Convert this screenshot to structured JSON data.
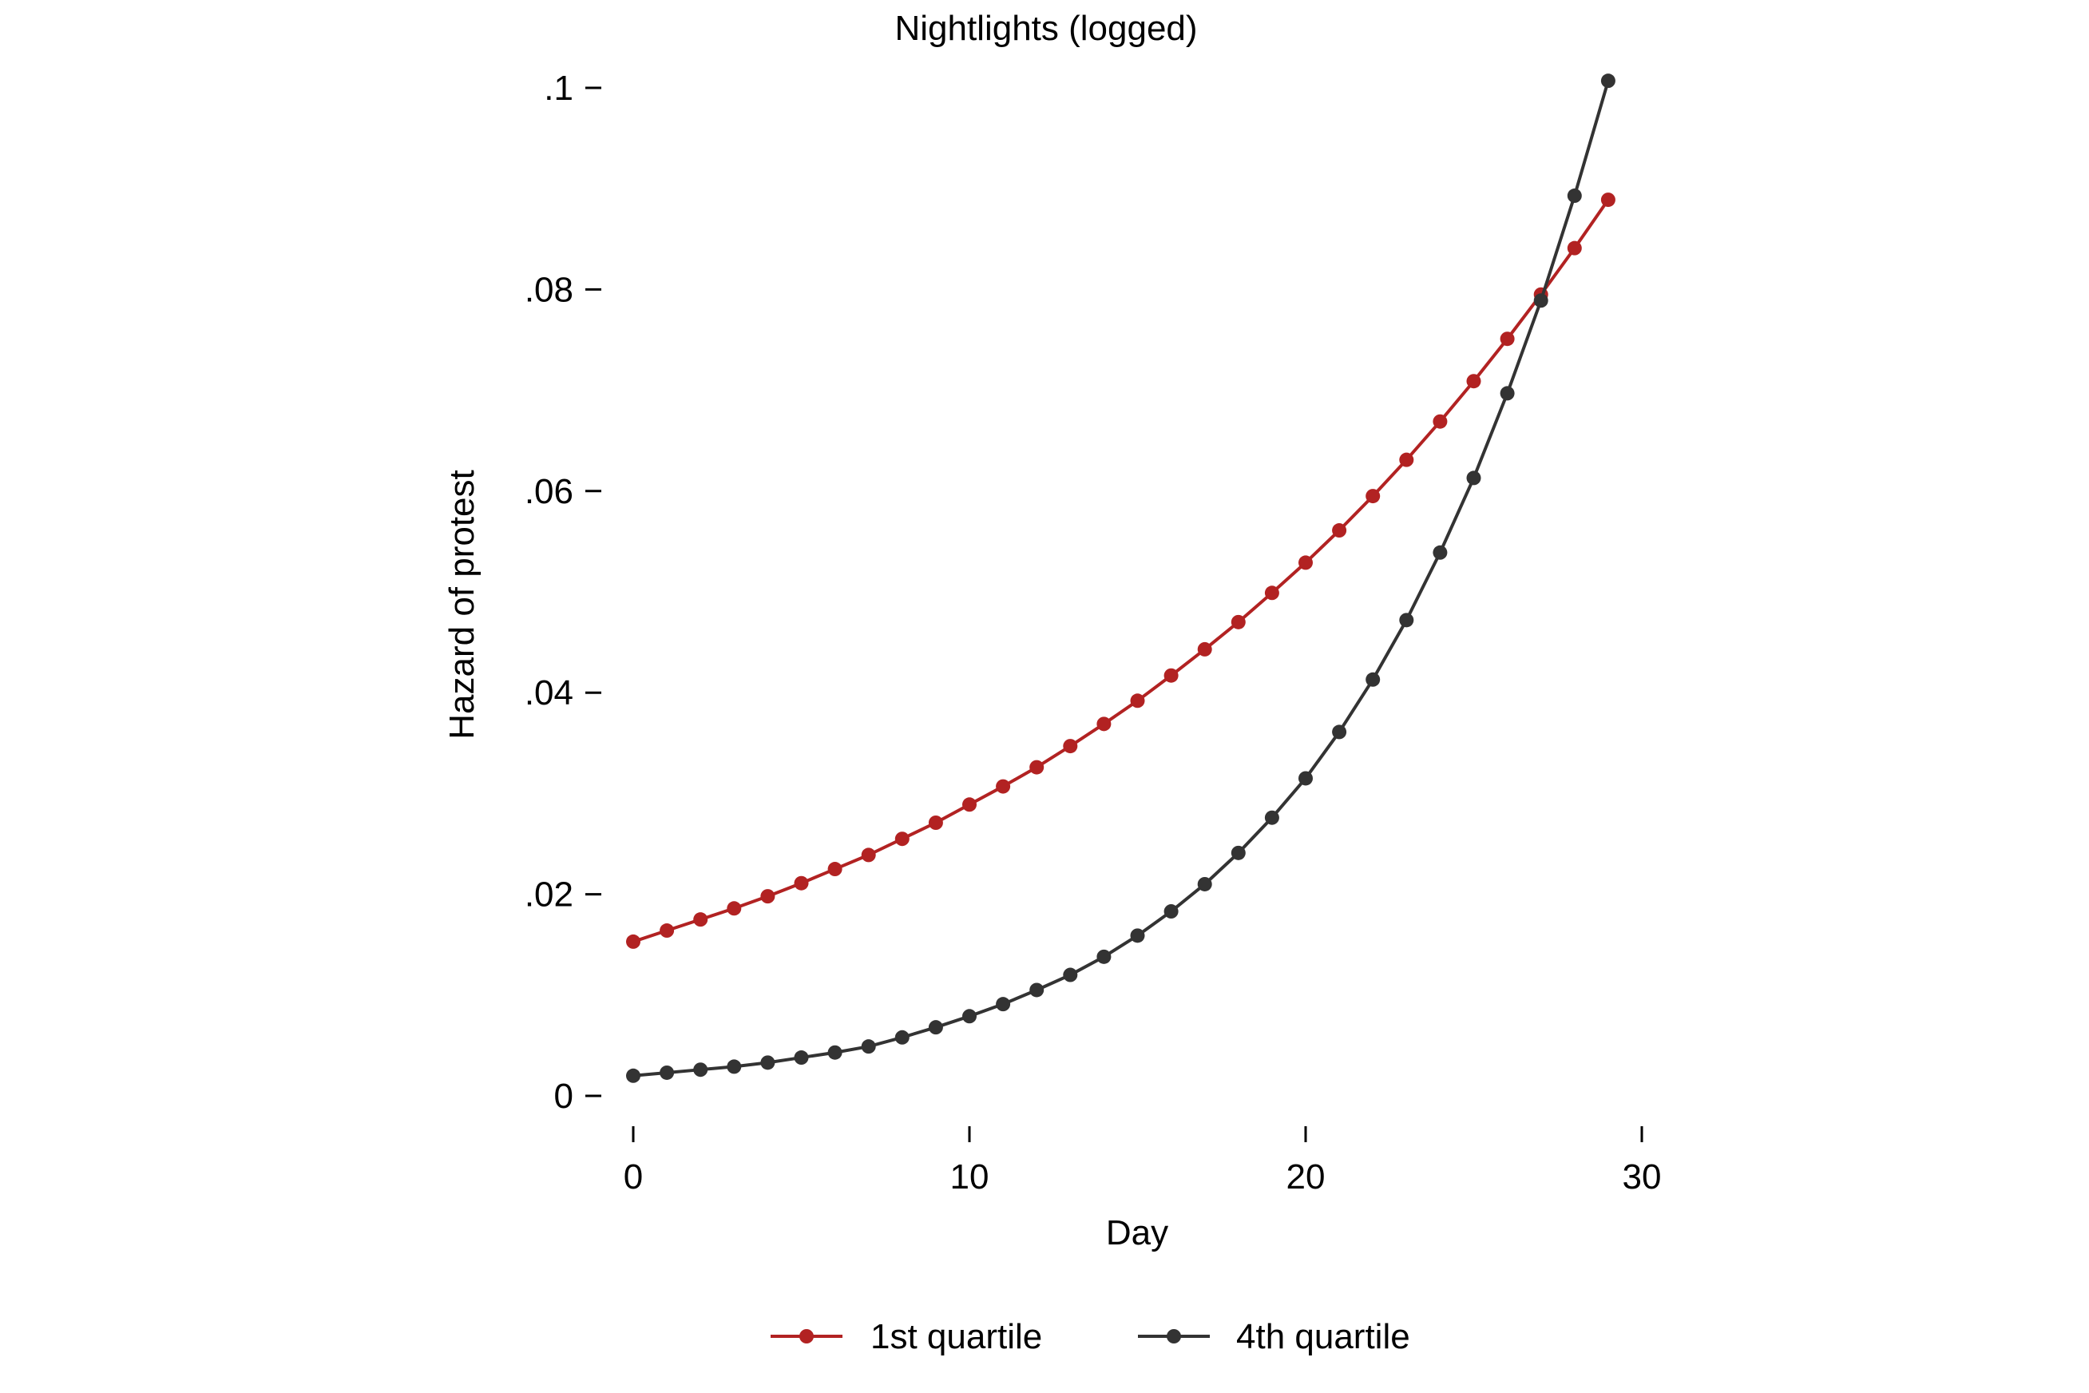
{
  "chart_data": {
    "type": "line",
    "title": "Nightlights (logged)",
    "xlabel": "Day",
    "ylabel": "Hazard of protest",
    "xlim": [
      0,
      30
    ],
    "ylim": [
      0,
      0.1
    ],
    "xticks": [
      0,
      10,
      20,
      30
    ],
    "xtick_labels": [
      "0",
      "10",
      "20",
      "30"
    ],
    "yticks": [
      0,
      0.02,
      0.04,
      0.06,
      0.08,
      0.1
    ],
    "ytick_labels": [
      "0",
      ".02",
      ".04",
      ".06",
      ".08",
      ".1"
    ],
    "grid": false,
    "legend_position": "bottom",
    "x": [
      0,
      1,
      2,
      3,
      4,
      5,
      6,
      7,
      8,
      9,
      10,
      11,
      12,
      13,
      14,
      15,
      16,
      17,
      18,
      19,
      20,
      21,
      22,
      23,
      24,
      25,
      26,
      27,
      28,
      29
    ],
    "series": [
      {
        "name": "1st quartile",
        "color": "#b22222",
        "values": [
          0.0153,
          0.0164,
          0.0175,
          0.0186,
          0.0198,
          0.0211,
          0.0225,
          0.0239,
          0.0255,
          0.0271,
          0.0289,
          0.0307,
          0.0326,
          0.0347,
          0.0369,
          0.0392,
          0.0417,
          0.0443,
          0.047,
          0.0499,
          0.0529,
          0.0561,
          0.0595,
          0.0631,
          0.0669,
          0.0709,
          0.0751,
          0.0795,
          0.0841,
          0.0889
        ]
      },
      {
        "name": "4th quartile",
        "color": "#333333",
        "values": [
          0.002,
          0.0023,
          0.0026,
          0.0029,
          0.0033,
          0.0038,
          0.0043,
          0.0049,
          0.0058,
          0.0068,
          0.0079,
          0.0091,
          0.0105,
          0.012,
          0.0138,
          0.0159,
          0.0183,
          0.021,
          0.0241,
          0.0276,
          0.0315,
          0.0361,
          0.0413,
          0.0472,
          0.0539,
          0.0613,
          0.0697,
          0.0789,
          0.0893,
          0.1007
        ]
      }
    ]
  }
}
